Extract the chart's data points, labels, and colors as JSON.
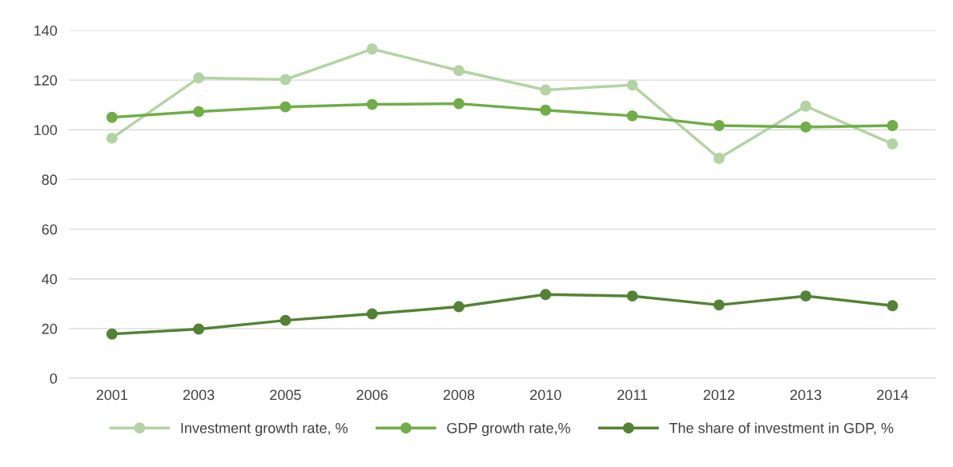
{
  "chart_data": {
    "type": "line",
    "categories": [
      "2001",
      "2003",
      "2005",
      "2006",
      "2008",
      "2010",
      "2011",
      "2012",
      "2013",
      "2014"
    ],
    "series": [
      {
        "name": "Investment growth rate, %",
        "color": "#b4d3a4",
        "values": [
          96.6,
          120.9,
          120.2,
          132.5,
          123.8,
          116,
          118,
          88.5,
          109.5,
          94.3
        ]
      },
      {
        "name": "GDP growth rate,%",
        "color": "#70ad47",
        "values": [
          105,
          107.3,
          109.2,
          110.2,
          110.5,
          107.9,
          105.6,
          101.7,
          101.1,
          101.7
        ]
      },
      {
        "name": "The share of investment in GDP, %",
        "color": "#548235",
        "values": [
          17.8,
          19.8,
          23.3,
          25.9,
          28.8,
          33.7,
          33.1,
          29.5,
          33.1,
          29.2
        ]
      }
    ],
    "ylim": [
      0,
      140
    ],
    "yticks": [
      0,
      20,
      40,
      60,
      80,
      100,
      120,
      140
    ],
    "grid": "y",
    "legend": "bottom",
    "marker": "circle",
    "line_style": "solid"
  }
}
